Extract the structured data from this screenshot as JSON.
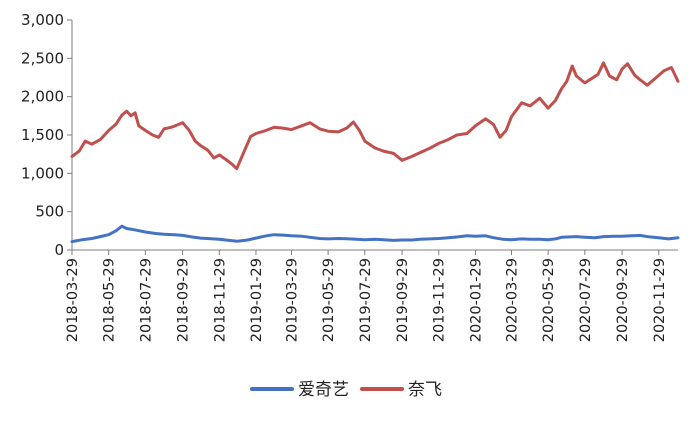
{
  "chart_data": {
    "type": "line",
    "title": "",
    "xlabel": "",
    "ylabel": "",
    "ylim": [
      0,
      3000
    ],
    "yticks": [
      "0",
      "500",
      "1,000",
      "1,500",
      "2,000",
      "2,500",
      "3,000"
    ],
    "x_start": "2018-03-29",
    "x_end": "2020-12-31",
    "xticks": [
      "2018-03-29",
      "2018-05-29",
      "2018-07-29",
      "2018-09-29",
      "2018-11-29",
      "2019-01-29",
      "2019-03-29",
      "2019-05-29",
      "2019-07-29",
      "2019-09-29",
      "2019-11-29",
      "2020-01-29",
      "2020-03-29",
      "2020-05-29",
      "2020-07-29",
      "2020-09-29",
      "2020-11-29"
    ],
    "grid": false,
    "legend_position": "bottom",
    "series": [
      {
        "name": "爱奇艺",
        "color": "#4472c4",
        "points": [
          [
            "2018-03-29",
            110
          ],
          [
            "2018-04-15",
            135
          ],
          [
            "2018-05-01",
            150
          ],
          [
            "2018-05-15",
            175
          ],
          [
            "2018-05-29",
            200
          ],
          [
            "2018-06-10",
            250
          ],
          [
            "2018-06-20",
            310
          ],
          [
            "2018-06-28",
            280
          ],
          [
            "2018-07-10",
            265
          ],
          [
            "2018-07-29",
            235
          ],
          [
            "2018-08-15",
            215
          ],
          [
            "2018-08-29",
            205
          ],
          [
            "2018-09-15",
            200
          ],
          [
            "2018-09-29",
            190
          ],
          [
            "2018-10-15",
            170
          ],
          [
            "2018-10-29",
            155
          ],
          [
            "2018-11-15",
            148
          ],
          [
            "2018-11-29",
            140
          ],
          [
            "2018-12-15",
            125
          ],
          [
            "2018-12-29",
            115
          ],
          [
            "2019-01-15",
            130
          ],
          [
            "2019-01-29",
            155
          ],
          [
            "2019-02-15",
            185
          ],
          [
            "2019-02-28",
            200
          ],
          [
            "2019-03-15",
            195
          ],
          [
            "2019-03-29",
            185
          ],
          [
            "2019-04-15",
            180
          ],
          [
            "2019-04-29",
            165
          ],
          [
            "2019-05-15",
            150
          ],
          [
            "2019-05-29",
            145
          ],
          [
            "2019-06-15",
            150
          ],
          [
            "2019-06-29",
            148
          ],
          [
            "2019-07-15",
            140
          ],
          [
            "2019-07-29",
            135
          ],
          [
            "2019-08-15",
            140
          ],
          [
            "2019-08-29",
            135
          ],
          [
            "2019-09-15",
            125
          ],
          [
            "2019-09-29",
            130
          ],
          [
            "2019-10-15",
            130
          ],
          [
            "2019-10-29",
            140
          ],
          [
            "2019-11-15",
            145
          ],
          [
            "2019-11-29",
            150
          ],
          [
            "2019-12-15",
            160
          ],
          [
            "2019-12-29",
            170
          ],
          [
            "2020-01-15",
            185
          ],
          [
            "2020-01-29",
            180
          ],
          [
            "2020-02-15",
            185
          ],
          [
            "2020-02-28",
            160
          ],
          [
            "2020-03-15",
            140
          ],
          [
            "2020-03-29",
            135
          ],
          [
            "2020-04-15",
            145
          ],
          [
            "2020-04-29",
            140
          ],
          [
            "2020-05-15",
            140
          ],
          [
            "2020-05-29",
            135
          ],
          [
            "2020-06-10",
            145
          ],
          [
            "2020-06-20",
            165
          ],
          [
            "2020-06-29",
            170
          ],
          [
            "2020-07-15",
            175
          ],
          [
            "2020-07-29",
            165
          ],
          [
            "2020-08-15",
            160
          ],
          [
            "2020-08-29",
            175
          ],
          [
            "2020-09-15",
            180
          ],
          [
            "2020-09-29",
            180
          ],
          [
            "2020-10-15",
            185
          ],
          [
            "2020-10-29",
            190
          ],
          [
            "2020-11-10",
            175
          ],
          [
            "2020-11-29",
            160
          ],
          [
            "2020-12-15",
            145
          ],
          [
            "2020-12-31",
            160
          ]
        ]
      },
      {
        "name": "奈飞",
        "color": "#c0504d",
        "points": [
          [
            "2018-03-29",
            1220
          ],
          [
            "2018-04-10",
            1290
          ],
          [
            "2018-04-20",
            1420
          ],
          [
            "2018-05-01",
            1380
          ],
          [
            "2018-05-15",
            1440
          ],
          [
            "2018-05-29",
            1560
          ],
          [
            "2018-06-10",
            1640
          ],
          [
            "2018-06-20",
            1760
          ],
          [
            "2018-06-28",
            1810
          ],
          [
            "2018-07-05",
            1750
          ],
          [
            "2018-07-12",
            1790
          ],
          [
            "2018-07-18",
            1620
          ],
          [
            "2018-07-29",
            1560
          ],
          [
            "2018-08-10",
            1500
          ],
          [
            "2018-08-20",
            1470
          ],
          [
            "2018-08-29",
            1580
          ],
          [
            "2018-09-10",
            1600
          ],
          [
            "2018-09-20",
            1630
          ],
          [
            "2018-09-29",
            1660
          ],
          [
            "2018-10-10",
            1560
          ],
          [
            "2018-10-20",
            1420
          ],
          [
            "2018-10-29",
            1360
          ],
          [
            "2018-11-10",
            1300
          ],
          [
            "2018-11-20",
            1200
          ],
          [
            "2018-11-29",
            1240
          ],
          [
            "2018-12-10",
            1180
          ],
          [
            "2018-12-20",
            1120
          ],
          [
            "2018-12-28",
            1060
          ],
          [
            "2019-01-08",
            1260
          ],
          [
            "2019-01-20",
            1480
          ],
          [
            "2019-01-29",
            1520
          ],
          [
            "2019-02-15",
            1560
          ],
          [
            "2019-02-28",
            1600
          ],
          [
            "2019-03-15",
            1590
          ],
          [
            "2019-03-29",
            1570
          ],
          [
            "2019-04-15",
            1620
          ],
          [
            "2019-04-29",
            1660
          ],
          [
            "2019-05-15",
            1580
          ],
          [
            "2019-05-29",
            1550
          ],
          [
            "2019-06-15",
            1540
          ],
          [
            "2019-06-29",
            1590
          ],
          [
            "2019-07-10",
            1670
          ],
          [
            "2019-07-20",
            1560
          ],
          [
            "2019-07-29",
            1420
          ],
          [
            "2019-08-15",
            1330
          ],
          [
            "2019-08-29",
            1290
          ],
          [
            "2019-09-15",
            1260
          ],
          [
            "2019-09-29",
            1170
          ],
          [
            "2019-10-15",
            1220
          ],
          [
            "2019-10-29",
            1270
          ],
          [
            "2019-11-15",
            1330
          ],
          [
            "2019-11-29",
            1390
          ],
          [
            "2019-12-15",
            1440
          ],
          [
            "2019-12-29",
            1500
          ],
          [
            "2020-01-15",
            1520
          ],
          [
            "2020-01-29",
            1620
          ],
          [
            "2020-02-15",
            1710
          ],
          [
            "2020-02-28",
            1640
          ],
          [
            "2020-03-10",
            1470
          ],
          [
            "2020-03-20",
            1560
          ],
          [
            "2020-03-29",
            1740
          ],
          [
            "2020-04-15",
            1920
          ],
          [
            "2020-04-29",
            1880
          ],
          [
            "2020-05-15",
            1980
          ],
          [
            "2020-05-29",
            1850
          ],
          [
            "2020-06-10",
            1950
          ],
          [
            "2020-06-20",
            2100
          ],
          [
            "2020-06-29",
            2200
          ],
          [
            "2020-07-08",
            2400
          ],
          [
            "2020-07-15",
            2270
          ],
          [
            "2020-07-29",
            2180
          ],
          [
            "2020-08-10",
            2240
          ],
          [
            "2020-08-20",
            2290
          ],
          [
            "2020-08-29",
            2440
          ],
          [
            "2020-09-08",
            2270
          ],
          [
            "2020-09-20",
            2220
          ],
          [
            "2020-09-29",
            2360
          ],
          [
            "2020-10-08",
            2430
          ],
          [
            "2020-10-20",
            2280
          ],
          [
            "2020-10-29",
            2220
          ],
          [
            "2020-11-10",
            2150
          ],
          [
            "2020-11-29",
            2280
          ],
          [
            "2020-12-08",
            2340
          ],
          [
            "2020-12-20",
            2380
          ],
          [
            "2020-12-31",
            2200
          ]
        ]
      }
    ]
  }
}
